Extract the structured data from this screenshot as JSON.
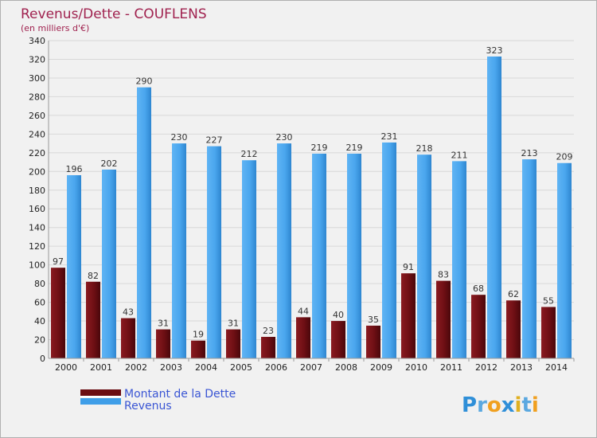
{
  "chart_data": {
    "type": "bar",
    "title": "Revenus/Dette - COUFLENS",
    "subtitle": "(en milliers d'€)",
    "categories": [
      "2000",
      "2001",
      "2002",
      "2003",
      "2004",
      "2005",
      "2006",
      "2007",
      "2008",
      "2009",
      "2010",
      "2011",
      "2012",
      "2013",
      "2014"
    ],
    "series": [
      {
        "name": "Montant de la Dette",
        "color": "#6b0d12",
        "values": [
          97,
          82,
          43,
          31,
          19,
          31,
          23,
          44,
          40,
          35,
          91,
          83,
          68,
          62,
          55
        ]
      },
      {
        "name": "Revenus",
        "color": "#3f9ee8",
        "values": [
          196,
          202,
          290,
          230,
          227,
          212,
          230,
          219,
          219,
          231,
          218,
          211,
          323,
          213,
          209
        ]
      }
    ],
    "ylim": [
      0,
      340
    ],
    "ytick_step": 20,
    "grid": true,
    "legend": "bottom-left",
    "brand": "Proxiti"
  }
}
